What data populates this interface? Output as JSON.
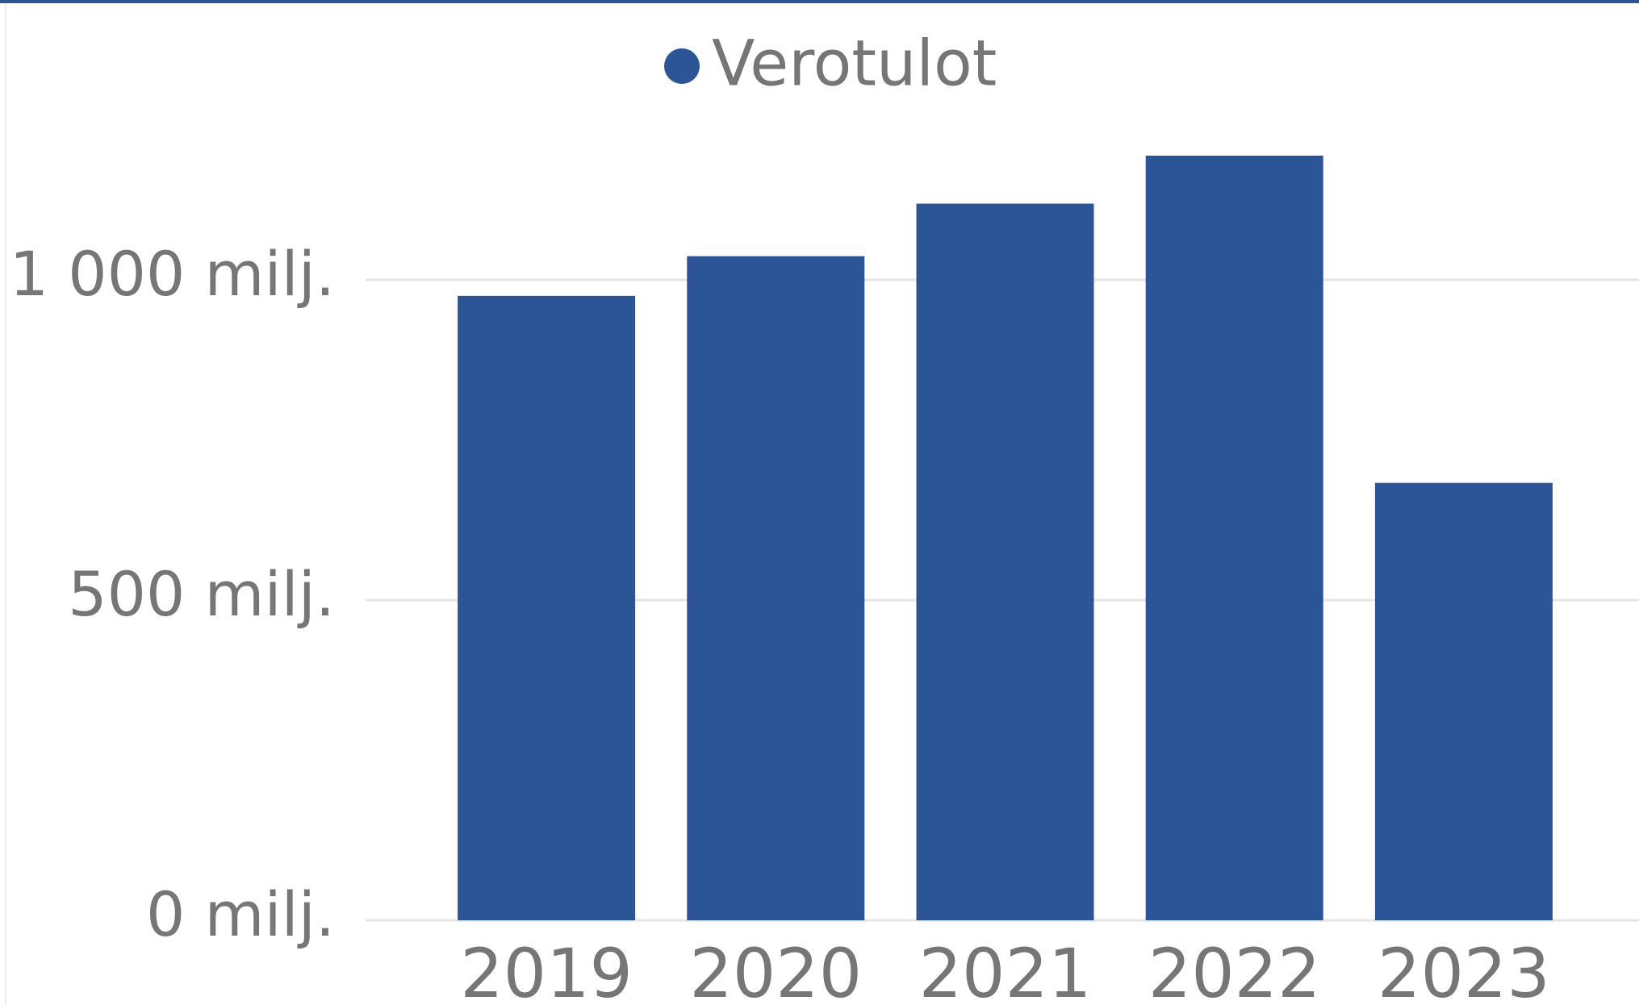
{
  "chart_data": {
    "type": "bar",
    "categories": [
      "2019",
      "2020",
      "2021",
      "2022",
      "2023"
    ],
    "series": [
      {
        "name": "Verotulot",
        "color": "#2b5597",
        "values": [
          975,
          1037,
          1119,
          1194,
          683
        ]
      }
    ],
    "ylim": [
      0,
      1250
    ],
    "yticks": [
      {
        "value": 0,
        "label": "0 milj."
      },
      {
        "value": 500,
        "label": "500 milj."
      },
      {
        "value": 1000,
        "label": "1 000 milj."
      }
    ],
    "grid": true,
    "legend": "top"
  }
}
